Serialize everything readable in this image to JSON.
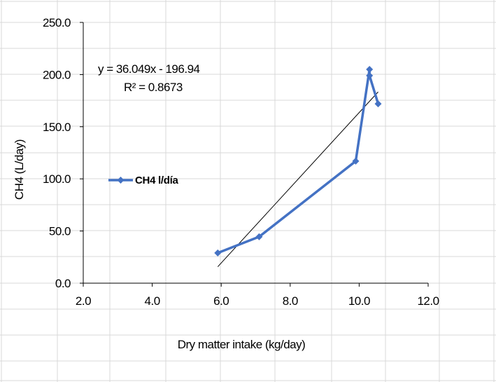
{
  "chart_data": {
    "type": "scatter",
    "title": "",
    "xlabel": "Dry matter intake (kg/day)",
    "ylabel": "CH4  (L/day)",
    "xlim": [
      2.0,
      12.0
    ],
    "ylim": [
      0.0,
      250.0
    ],
    "xticks": [
      "2.0",
      "4.0",
      "6.0",
      "8.0",
      "10.0",
      "12.0"
    ],
    "yticks": [
      "0.0",
      "50.0",
      "100.0",
      "150.0",
      "200.0",
      "250.0"
    ],
    "grid": false,
    "legend_position": "left-middle",
    "series": [
      {
        "name": "CH4 l/día",
        "color": "#4472c4",
        "marker": "diamond",
        "points": [
          {
            "x": 5.9,
            "y": 29.0
          },
          {
            "x": 7.1,
            "y": 44.5
          },
          {
            "x": 9.9,
            "y": 117.0
          },
          {
            "x": 10.3,
            "y": 205.0
          },
          {
            "x": 10.3,
            "y": 199.0
          },
          {
            "x": 10.55,
            "y": 172.0
          }
        ]
      }
    ],
    "trendline": {
      "type": "linear",
      "color": "#000000",
      "slope": 36.049,
      "intercept": -196.94,
      "x_range": [
        5.9,
        10.55
      ],
      "equation_label": "y = 36.049x - 196.94",
      "r2_label": "R² = 0.8673"
    }
  }
}
